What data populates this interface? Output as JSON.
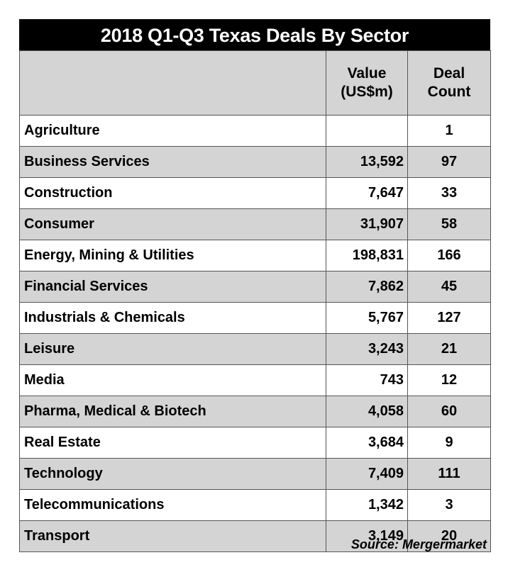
{
  "title": "2018 Q1-Q3 Texas Deals By Sector",
  "columns": {
    "sector": "",
    "value_line1": "Value",
    "value_line2": "(US$m)",
    "count_line1": "Deal",
    "count_line2": "Count"
  },
  "rows": [
    {
      "sector": "Agriculture",
      "value": "",
      "count": "1"
    },
    {
      "sector": "Business Services",
      "value": "13,592",
      "count": "97"
    },
    {
      "sector": "Construction",
      "value": "7,647",
      "count": "33"
    },
    {
      "sector": "Consumer",
      "value": "31,907",
      "count": "58"
    },
    {
      "sector": "Energy, Mining & Utilities",
      "value": "198,831",
      "count": "166"
    },
    {
      "sector": "Financial Services",
      "value": "7,862",
      "count": "45"
    },
    {
      "sector": "Industrials & Chemicals",
      "value": "5,767",
      "count": "127"
    },
    {
      "sector": "Leisure",
      "value": "3,243",
      "count": "21"
    },
    {
      "sector": "Media",
      "value": "743",
      "count": "12"
    },
    {
      "sector": "Pharma, Medical & Biotech",
      "value": "4,058",
      "count": "60"
    },
    {
      "sector": "Real Estate",
      "value": "3,684",
      "count": "9"
    },
    {
      "sector": "Technology",
      "value": "7,409",
      "count": "111"
    },
    {
      "sector": "Telecommunications",
      "value": "1,342",
      "count": "3"
    },
    {
      "sector": "Transport",
      "value": "3,149",
      "count": "20"
    }
  ],
  "source": "Source: Mergermarket"
}
